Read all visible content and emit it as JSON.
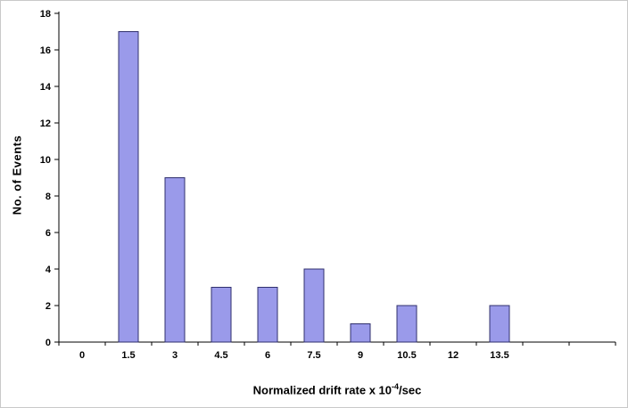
{
  "chart_data": {
    "type": "bar",
    "categories": [
      "0",
      "1.5",
      "3",
      "4.5",
      "6",
      "7.5",
      "9",
      "10.5",
      "12",
      "13.5"
    ],
    "values": [
      0,
      17,
      9,
      3,
      3,
      4,
      1,
      2,
      0,
      2
    ],
    "title": "",
    "xlabel": "Normalized drift rate x 10^-4/sec",
    "xlabel_base": "Normalized drift rate x 10",
    "xlabel_sup": "-4",
    "xlabel_suffix": "/sec",
    "ylabel": "No. of Events",
    "ylim": [
      0,
      18
    ],
    "ytick_step": 2,
    "grid": false,
    "legend_position": "none",
    "bar_fill": "#9a9aea",
    "bar_border": "#30306e",
    "axis_color": "#000000"
  }
}
